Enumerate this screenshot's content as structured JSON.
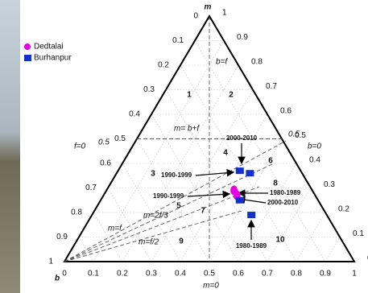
{
  "chart_data": {
    "type": "ternary",
    "top_label": "m",
    "corner_label": "b",
    "bottom_label": "m=0",
    "left_label": "f=0",
    "right_label": "b=0",
    "bottom_ticks": [
      0,
      0.1,
      0.2,
      0.3,
      0.4,
      0.5,
      0.6,
      0.7,
      0.8,
      0.9,
      1
    ],
    "left_ticks": [
      0,
      0.1,
      0.2,
      0.3,
      0.4,
      0.5,
      0.6,
      0.7,
      0.8,
      0.9,
      1
    ],
    "right_ticks": [
      1,
      0.9,
      0.8,
      0.7,
      0.6,
      0.5,
      0.4,
      0.3,
      0.2,
      0.1,
      0
    ],
    "grid": true,
    "series": [
      {
        "name": "Dedtalai",
        "color": "#e600e6",
        "marker": "circle",
        "m": [
          0.29,
          0.27
        ],
        "f": [
          0.44,
          0.46
        ]
      },
      {
        "name": "Burhanpur",
        "color": "#1030d0",
        "marker": "square",
        "m": [
          0.37,
          0.36,
          0.25,
          0.19
        ],
        "f": [
          0.42,
          0.46,
          0.48,
          0.55
        ]
      }
    ],
    "line_labels": [
      "b=f",
      "m= b+f",
      "0.5",
      "0.5",
      "m=2f/3",
      "m=f",
      "m=f/2"
    ],
    "regions": [
      "1",
      "2",
      "3",
      "4",
      "5",
      "6",
      "7",
      "8",
      "9",
      "10"
    ],
    "annotations": [
      "2000-2010",
      "1990-1999",
      "1990-1999",
      "1980-1989",
      "2000-2010",
      "1980-1989"
    ]
  }
}
